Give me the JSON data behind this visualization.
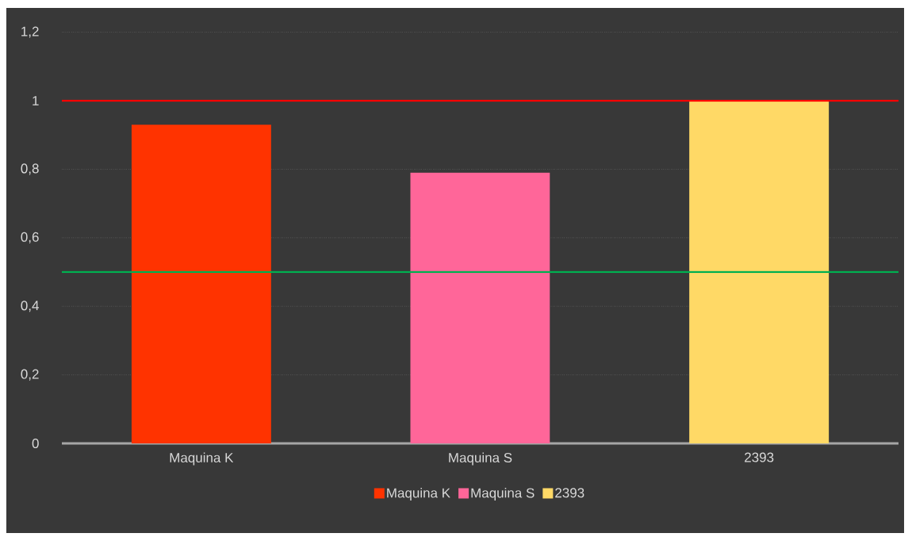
{
  "chart_data": {
    "type": "bar",
    "categories": [
      "Maquina K",
      "Maquina S",
      "2393"
    ],
    "series": [
      {
        "name": "Maquina K",
        "color": "#ff3300",
        "values": [
          0.93,
          null,
          null
        ]
      },
      {
        "name": "Maquina S",
        "color": "#ff6699",
        "values": [
          null,
          0.79,
          null
        ]
      },
      {
        "name": "2393",
        "color": "#ffd966",
        "values": [
          null,
          null,
          1.0
        ]
      }
    ],
    "ylim": [
      0,
      1.2
    ],
    "yticks": [
      0,
      {
        "value": 0.2,
        "label": "0,2"
      },
      {
        "value": 0.4,
        "label": "0,4"
      },
      {
        "value": 0.6,
        "label": "0,6"
      },
      {
        "value": 0.8,
        "label": "0,8"
      },
      1,
      {
        "value": 1.2,
        "label": "1,2"
      }
    ],
    "grid": "y",
    "legend": "bottom",
    "ref_lines": [
      {
        "axis": "y",
        "value": 1,
        "color": "#ff0000"
      },
      {
        "axis": "y",
        "value": 0.5,
        "color": "#00b050"
      }
    ]
  }
}
